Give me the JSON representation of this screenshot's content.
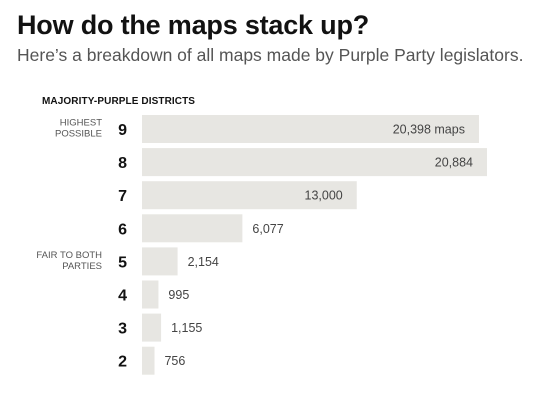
{
  "header": {
    "title": "How do the maps stack up?",
    "subtitle": "Here’s a breakdown of all maps made by Purple Party legislators."
  },
  "colors": {
    "bar": "#e7e6e2",
    "text": "#121212",
    "muted": "#555555",
    "value": "#444444"
  },
  "chart_data": {
    "type": "bar",
    "orientation": "horizontal",
    "ylabel": "MAJORITY-PURPLE DISTRICTS",
    "categories": [
      "9",
      "8",
      "7",
      "6",
      "5",
      "4",
      "3",
      "2"
    ],
    "values": [
      20398,
      20884,
      13000,
      6077,
      2154,
      995,
      1155,
      756
    ],
    "value_labels": [
      "20,398 maps",
      "20,884",
      "13,000",
      "6,077",
      "2,154",
      "995",
      "1,155",
      "756"
    ],
    "annotations": [
      {
        "category": "9",
        "lines": [
          "HIGHEST",
          "POSSIBLE"
        ]
      },
      {
        "category": "5",
        "lines": [
          "FAIR TO BOTH",
          "PARTIES"
        ]
      }
    ],
    "xlim": [
      0,
      20884
    ],
    "grid": false,
    "legend": false
  }
}
